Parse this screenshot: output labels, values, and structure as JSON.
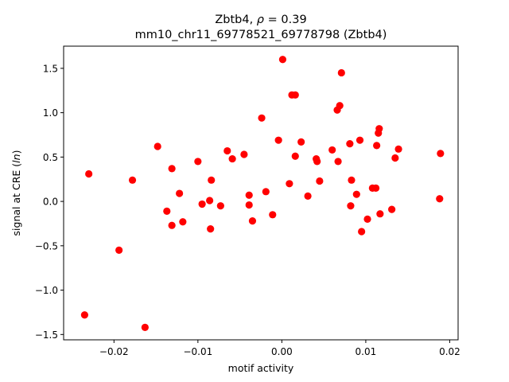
{
  "chart_data": {
    "type": "scatter",
    "title_gene": "Zbtb4",
    "title_rho": "0.39",
    "subtitle": "mm10_chr11_69778521_69778798 (Zbtb4)",
    "xlabel": "motif activity",
    "ylabel_prefix": "signal at CRE (",
    "ylabel_symbol": "ln",
    "ylabel_suffix": ")",
    "xlim": [
      -0.026,
      0.021
    ],
    "ylim": [
      -1.56,
      1.75
    ],
    "xticks": [
      -0.02,
      -0.01,
      0.0,
      0.01,
      0.02
    ],
    "xtick_labels": [
      "−0.02",
      "−0.01",
      "0.00",
      "0.01",
      "0.02"
    ],
    "yticks": [
      -1.5,
      -1.0,
      -0.5,
      0.0,
      0.5,
      1.0,
      1.5
    ],
    "ytick_labels": [
      "−1.5",
      "−1.0",
      "−0.5",
      "0.0",
      "0.5",
      "1.0",
      "1.5"
    ],
    "grid": false,
    "marker_color": "#ff0000",
    "points": [
      [
        -0.0235,
        -1.28
      ],
      [
        -0.023,
        0.31
      ],
      [
        -0.0194,
        -0.55
      ],
      [
        -0.0178,
        0.24
      ],
      [
        -0.0163,
        -1.42
      ],
      [
        -0.0148,
        0.62
      ],
      [
        -0.0137,
        -0.11
      ],
      [
        -0.0131,
        0.37
      ],
      [
        -0.0131,
        -0.27
      ],
      [
        -0.0122,
        0.09
      ],
      [
        -0.0118,
        -0.23
      ],
      [
        -0.01,
        0.45
      ],
      [
        -0.0095,
        -0.03
      ],
      [
        -0.0086,
        0.01
      ],
      [
        -0.0085,
        -0.31
      ],
      [
        -0.0084,
        0.24
      ],
      [
        -0.0073,
        -0.05
      ],
      [
        -0.0065,
        0.57
      ],
      [
        -0.0059,
        0.48
      ],
      [
        -0.0045,
        0.53
      ],
      [
        -0.0039,
        0.07
      ],
      [
        -0.0039,
        -0.04
      ],
      [
        -0.0035,
        -0.22
      ],
      [
        -0.0024,
        0.94
      ],
      [
        -0.0019,
        0.11
      ],
      [
        -0.0011,
        -0.15
      ],
      [
        -0.0004,
        0.69
      ],
      [
        0.0001,
        1.6
      ],
      [
        0.0009,
        0.2
      ],
      [
        0.0012,
        1.2
      ],
      [
        0.0016,
        1.2
      ],
      [
        0.0016,
        0.51
      ],
      [
        0.0023,
        0.67
      ],
      [
        0.0031,
        0.06
      ],
      [
        0.0041,
        0.48
      ],
      [
        0.0042,
        0.45
      ],
      [
        0.0045,
        0.23
      ],
      [
        0.006,
        0.58
      ],
      [
        0.0066,
        1.03
      ],
      [
        0.0067,
        0.45
      ],
      [
        0.0069,
        1.08
      ],
      [
        0.0071,
        1.45
      ],
      [
        0.0081,
        0.65
      ],
      [
        0.0082,
        -0.05
      ],
      [
        0.0083,
        0.24
      ],
      [
        0.0089,
        0.08
      ],
      [
        0.0093,
        0.69
      ],
      [
        0.0095,
        -0.34
      ],
      [
        0.0102,
        -0.2
      ],
      [
        0.0108,
        0.15
      ],
      [
        0.0112,
        0.15
      ],
      [
        0.0113,
        0.63
      ],
      [
        0.0115,
        0.77
      ],
      [
        0.0116,
        0.82
      ],
      [
        0.0117,
        -0.14
      ],
      [
        0.0131,
        -0.09
      ],
      [
        0.0135,
        0.49
      ],
      [
        0.0139,
        0.59
      ],
      [
        0.0188,
        0.03
      ],
      [
        0.0189,
        0.54
      ]
    ]
  }
}
